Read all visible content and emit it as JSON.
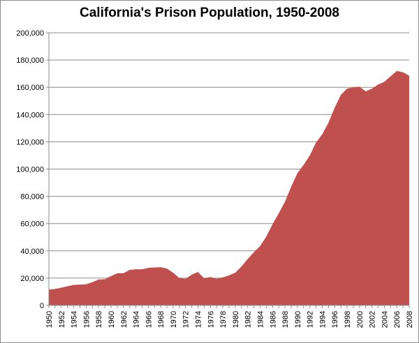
{
  "chart_data": {
    "type": "area",
    "title": "California's Prison Population, 1950-2008",
    "xlabel": "",
    "ylabel": "",
    "ylim": [
      0,
      200000
    ],
    "grid": true,
    "legend": "none",
    "color": "#c0504d",
    "y_ticks": [
      "0",
      "20,000",
      "40,000",
      "60,000",
      "80,000",
      "100,000",
      "120,000",
      "140,000",
      "160,000",
      "180,000",
      "200,000"
    ],
    "x_tick_labels": [
      "1950",
      "1952",
      "1954",
      "1956",
      "1958",
      "1960",
      "1962",
      "1964",
      "1966",
      "1968",
      "1970",
      "1972",
      "1974",
      "1976",
      "1978",
      "1980",
      "1982",
      "1984",
      "1986",
      "1988",
      "1990",
      "1992",
      "1994",
      "1996",
      "1998",
      "2000",
      "2002",
      "2004",
      "2006",
      "2008"
    ],
    "x": [
      1950,
      1951,
      1952,
      1953,
      1954,
      1955,
      1956,
      1957,
      1958,
      1959,
      1960,
      1961,
      1962,
      1963,
      1964,
      1965,
      1966,
      1967,
      1968,
      1969,
      1970,
      1971,
      1972,
      1973,
      1974,
      1975,
      1976,
      1977,
      1978,
      1979,
      1980,
      1981,
      1982,
      1983,
      1984,
      1985,
      1986,
      1987,
      1988,
      1989,
      1990,
      1991,
      1992,
      1993,
      1994,
      1995,
      1996,
      1997,
      1998,
      1999,
      2000,
      2001,
      2002,
      2003,
      2004,
      2005,
      2006,
      2007,
      2008
    ],
    "values": [
      11500,
      12000,
      13000,
      14000,
      15000,
      15200,
      15500,
      17000,
      19000,
      19200,
      21500,
      23500,
      23500,
      26000,
      26500,
      26500,
      27500,
      27800,
      28000,
      27000,
      24000,
      20000,
      19500,
      22500,
      24500,
      19800,
      20800,
      19500,
      20500,
      22000,
      24000,
      28500,
      34000,
      39000,
      43500,
      50500,
      59500,
      67500,
      76000,
      87000,
      97000,
      103000,
      110000,
      119500,
      125500,
      134000,
      145000,
      154500,
      159000,
      160000,
      160500,
      157000,
      159000,
      162000,
      164000,
      168000,
      172000,
      171000,
      168500
    ]
  }
}
